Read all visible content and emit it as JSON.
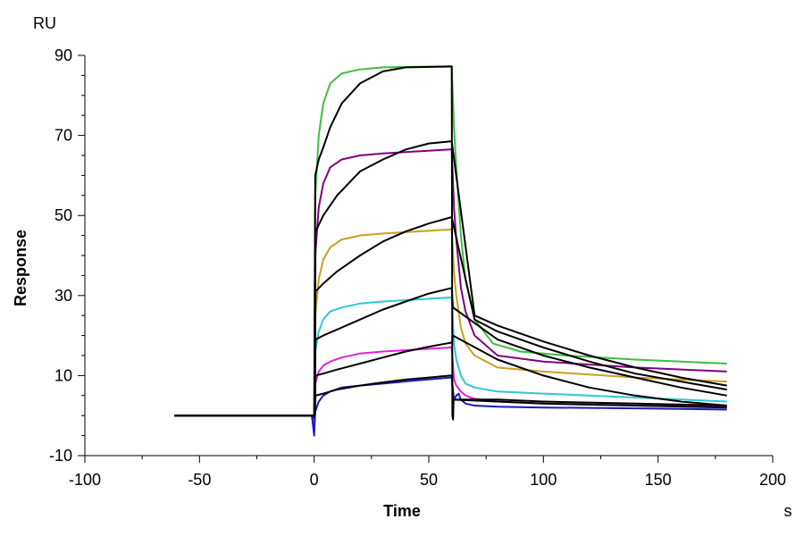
{
  "chart_data": {
    "type": "line",
    "title": "",
    "xlabel": "Time",
    "ylabel": "Response",
    "x_unit": "s",
    "y_unit": "RU",
    "xlim": [
      -100,
      200
    ],
    "ylim": [
      -10,
      90
    ],
    "x_ticks": [
      -100,
      -50,
      0,
      50,
      100,
      150,
      200
    ],
    "y_ticks": [
      -10,
      10,
      30,
      50,
      70,
      90
    ],
    "grid": false,
    "legend": "none",
    "series": [
      {
        "color": "#3fbf3f",
        "values": [
          [
            -61,
            0
          ],
          [
            -1,
            0
          ],
          [
            0,
            -2
          ],
          [
            0.5,
            55
          ],
          [
            2,
            70
          ],
          [
            4,
            78
          ],
          [
            7,
            83
          ],
          [
            12,
            85.5
          ],
          [
            20,
            86.5
          ],
          [
            30,
            87
          ],
          [
            59.5,
            87.3
          ],
          [
            60,
            87.3
          ],
          [
            61,
            72
          ],
          [
            62,
            62
          ],
          [
            64,
            45
          ],
          [
            66,
            34
          ],
          [
            70,
            24
          ],
          [
            78,
            18
          ],
          [
            90,
            16
          ],
          [
            110,
            15
          ],
          [
            140,
            14
          ],
          [
            180,
            13
          ]
        ]
      },
      {
        "color": "#800080",
        "values": [
          [
            -61,
            0
          ],
          [
            -1,
            0
          ],
          [
            0,
            -2
          ],
          [
            0.5,
            40
          ],
          [
            2,
            52
          ],
          [
            4,
            58
          ],
          [
            7,
            62
          ],
          [
            12,
            64
          ],
          [
            20,
            65
          ],
          [
            30,
            65.5
          ],
          [
            59.5,
            66.5
          ],
          [
            60,
            66.5
          ],
          [
            61,
            52
          ],
          [
            62,
            44
          ],
          [
            64,
            32
          ],
          [
            66,
            26
          ],
          [
            70,
            20
          ],
          [
            80,
            15
          ],
          [
            100,
            13.5
          ],
          [
            140,
            12
          ],
          [
            180,
            11
          ]
        ]
      },
      {
        "color": "#c8a020",
        "values": [
          [
            -61,
            0
          ],
          [
            -1,
            0
          ],
          [
            0,
            -2
          ],
          [
            0.5,
            25
          ],
          [
            2,
            34
          ],
          [
            4,
            39
          ],
          [
            7,
            42
          ],
          [
            12,
            44
          ],
          [
            20,
            45
          ],
          [
            30,
            45.5
          ],
          [
            59.5,
            46.5
          ],
          [
            60,
            46.5
          ],
          [
            61,
            36
          ],
          [
            62,
            30
          ],
          [
            64,
            22
          ],
          [
            66,
            18
          ],
          [
            70,
            15
          ],
          [
            80,
            12
          ],
          [
            100,
            11
          ],
          [
            140,
            9.5
          ],
          [
            180,
            8.5
          ]
        ]
      },
      {
        "color": "#2ec8d0",
        "values": [
          [
            -61,
            0
          ],
          [
            -1,
            0
          ],
          [
            0,
            -2
          ],
          [
            0.5,
            16
          ],
          [
            2,
            21
          ],
          [
            4,
            24
          ],
          [
            7,
            26
          ],
          [
            12,
            27
          ],
          [
            20,
            28
          ],
          [
            30,
            28.5
          ],
          [
            59.5,
            29.5
          ],
          [
            60,
            29.5
          ],
          [
            61,
            18
          ],
          [
            62,
            14
          ],
          [
            64,
            10
          ],
          [
            66,
            8
          ],
          [
            70,
            7
          ],
          [
            80,
            6
          ],
          [
            100,
            5.5
          ],
          [
            140,
            4.5
          ],
          [
            180,
            3.5
          ]
        ]
      },
      {
        "color": "#e020e0",
        "values": [
          [
            -61,
            0
          ],
          [
            -1,
            0
          ],
          [
            0,
            -1.5
          ],
          [
            0.5,
            8
          ],
          [
            2,
            11
          ],
          [
            4,
            12.5
          ],
          [
            7,
            13.5
          ],
          [
            12,
            14.5
          ],
          [
            20,
            15.5
          ],
          [
            30,
            16
          ],
          [
            59.5,
            17
          ],
          [
            60,
            17
          ],
          [
            61,
            9
          ],
          [
            62,
            7.5
          ],
          [
            64,
            6
          ],
          [
            66,
            5
          ],
          [
            70,
            4.2
          ],
          [
            80,
            3.5
          ],
          [
            100,
            3
          ],
          [
            140,
            2.5
          ],
          [
            180,
            2.2
          ]
        ]
      },
      {
        "color": "#1a1ab8",
        "values": [
          [
            -61,
            0
          ],
          [
            -1,
            0
          ],
          [
            0,
            -5
          ],
          [
            0.5,
            1
          ],
          [
            2,
            3.5
          ],
          [
            4,
            5
          ],
          [
            7,
            6
          ],
          [
            12,
            7
          ],
          [
            20,
            7.5
          ],
          [
            30,
            8
          ],
          [
            45,
            8.8
          ],
          [
            59.5,
            9.5
          ],
          [
            60,
            9.5
          ],
          [
            61,
            4
          ],
          [
            62,
            5
          ],
          [
            63,
            5.5
          ],
          [
            64,
            4
          ],
          [
            66,
            3
          ],
          [
            70,
            2.5
          ],
          [
            80,
            2.2
          ],
          [
            100,
            2
          ],
          [
            140,
            1.8
          ],
          [
            180,
            1.5
          ]
        ]
      },
      {
        "color": "#000000",
        "values": [
          [
            -61,
            0
          ],
          [
            -1,
            0
          ],
          [
            0,
            -0.5
          ],
          [
            0.5,
            60
          ],
          [
            2,
            64
          ],
          [
            4,
            67
          ],
          [
            7,
            72
          ],
          [
            12,
            78
          ],
          [
            20,
            83
          ],
          [
            30,
            86
          ],
          [
            40,
            87
          ],
          [
            59.5,
            87.2
          ],
          [
            60,
            87.2
          ],
          [
            60.3,
            0
          ],
          [
            60.6,
            -1
          ],
          [
            60.8,
            4
          ],
          [
            80,
            4
          ],
          [
            100,
            3.5
          ],
          [
            140,
            3
          ],
          [
            180,
            2.5
          ]
        ]
      },
      {
        "color": "#000000",
        "values": [
          [
            -61,
            0
          ],
          [
            -1,
            0
          ],
          [
            0.3,
            0
          ],
          [
            0.6,
            46
          ],
          [
            4,
            50
          ],
          [
            10,
            55
          ],
          [
            20,
            61
          ],
          [
            30,
            64
          ],
          [
            40,
            66.5
          ],
          [
            50,
            68
          ],
          [
            59.5,
            68.5
          ],
          [
            60,
            68.5
          ],
          [
            70,
            25
          ],
          [
            80,
            22.5
          ],
          [
            100,
            18.5
          ],
          [
            120,
            15
          ],
          [
            140,
            12
          ],
          [
            160,
            9.5
          ],
          [
            180,
            7.5
          ]
        ]
      },
      {
        "color": "#000000",
        "values": [
          [
            -61,
            0
          ],
          [
            -1,
            0
          ],
          [
            0.3,
            0
          ],
          [
            0.6,
            31
          ],
          [
            4,
            33
          ],
          [
            10,
            36
          ],
          [
            20,
            40
          ],
          [
            30,
            43.5
          ],
          [
            40,
            46
          ],
          [
            50,
            48
          ],
          [
            59.5,
            49.5
          ],
          [
            60,
            49.5
          ],
          [
            70,
            24
          ],
          [
            80,
            21
          ],
          [
            100,
            17
          ],
          [
            120,
            13.5
          ],
          [
            140,
            10.5
          ],
          [
            160,
            8.5
          ],
          [
            180,
            6.5
          ]
        ]
      },
      {
        "color": "#000000",
        "values": [
          [
            -61,
            0
          ],
          [
            -1,
            0
          ],
          [
            0.3,
            0
          ],
          [
            0.6,
            19
          ],
          [
            4,
            20
          ],
          [
            10,
            21.5
          ],
          [
            20,
            24
          ],
          [
            30,
            26.5
          ],
          [
            40,
            28.5
          ],
          [
            50,
            30.5
          ],
          [
            59.5,
            31.8
          ],
          [
            60,
            31.8
          ],
          [
            60.5,
            27
          ],
          [
            80,
            19
          ],
          [
            100,
            15
          ],
          [
            120,
            12
          ],
          [
            140,
            9.5
          ],
          [
            160,
            7
          ],
          [
            180,
            5
          ]
        ]
      },
      {
        "color": "#000000",
        "values": [
          [
            -61,
            0
          ],
          [
            -1,
            0
          ],
          [
            0.3,
            0
          ],
          [
            0.6,
            10
          ],
          [
            4,
            10.5
          ],
          [
            10,
            11.5
          ],
          [
            20,
            13
          ],
          [
            30,
            14.5
          ],
          [
            40,
            16
          ],
          [
            50,
            17.2
          ],
          [
            59.5,
            18.2
          ],
          [
            60,
            18.2
          ],
          [
            60.5,
            20
          ],
          [
            80,
            14
          ],
          [
            100,
            10
          ],
          [
            120,
            7
          ],
          [
            140,
            5
          ],
          [
            160,
            3.5
          ],
          [
            180,
            2.5
          ]
        ]
      },
      {
        "color": "#000000",
        "values": [
          [
            -61,
            0
          ],
          [
            -1,
            0
          ],
          [
            0.3,
            0
          ],
          [
            0.6,
            5
          ],
          [
            4,
            5.5
          ],
          [
            10,
            6.5
          ],
          [
            20,
            7.5
          ],
          [
            30,
            8.3
          ],
          [
            40,
            9
          ],
          [
            50,
            9.5
          ],
          [
            59.5,
            10
          ],
          [
            60,
            10
          ],
          [
            60.5,
            4
          ],
          [
            80,
            3.5
          ],
          [
            100,
            3
          ],
          [
            140,
            2.5
          ],
          [
            180,
            2
          ]
        ]
      }
    ]
  }
}
